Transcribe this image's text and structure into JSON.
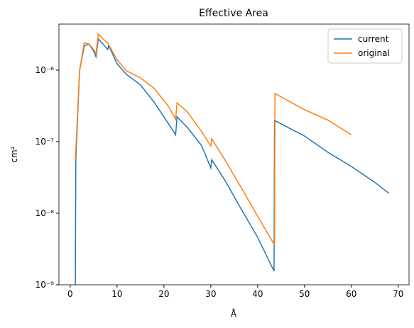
{
  "chart_data": {
    "type": "line",
    "title": "Effective Area",
    "x_label": "Å",
    "y_label": "cm²",
    "log_y": true,
    "legend": "upper right",
    "xlim": [
      -2.4,
      72.3
    ],
    "xticks": [
      0,
      10,
      20,
      30,
      40,
      50,
      60,
      70
    ],
    "ylim": [
      1e-09,
      4.4e-06
    ],
    "yticks": [
      {
        "value": 1e-09,
        "label": "10⁻⁹"
      },
      {
        "value": 1e-08,
        "label": "10⁻⁸"
      },
      {
        "value": 1e-07,
        "label": "10⁻⁷"
      },
      {
        "value": 1e-06,
        "label": "10⁻⁶"
      }
    ],
    "series": [
      {
        "name": "current",
        "color": "#1f77b4",
        "x": [
          1.1,
          1.2,
          2,
          3,
          4,
          5,
          5.5,
          6,
          7,
          8,
          8.2,
          10,
          12,
          15,
          18,
          21,
          22.5,
          22.8,
          25,
          28,
          30,
          30.2,
          33,
          36,
          40,
          43.5,
          43.6,
          50,
          55,
          60,
          65,
          68
        ],
        "values": [
          1e-09,
          5.6e-08,
          9.8e-07,
          2.17e-06,
          2.32e-06,
          1.85e-06,
          1.54e-06,
          2.73e-06,
          2.32e-06,
          1.94e-06,
          2.22e-06,
          1.23e-06,
          8.7e-07,
          6.2e-07,
          3.5e-07,
          1.77e-07,
          1.25e-07,
          2.22e-07,
          1.58e-07,
          8.9e-08,
          4.3e-08,
          5.6e-08,
          2.9e-08,
          1.3e-08,
          4.6e-09,
          1.55e-09,
          1.98e-07,
          1.2e-07,
          7.1e-08,
          4.5e-08,
          2.7e-08,
          1.9e-08
        ]
      },
      {
        "name": "original",
        "color": "#ff7f0e",
        "x": [
          1.1,
          2,
          3,
          4,
          5,
          5.5,
          6,
          7,
          8,
          10,
          12,
          15,
          18,
          21,
          22.5,
          22.8,
          25,
          28,
          30,
          30.2,
          33,
          36,
          40,
          43.6,
          43.7,
          50,
          55,
          60
        ],
        "values": [
          5.5e-08,
          9.8e-07,
          2.4e-06,
          2.32e-06,
          1.94e-06,
          1.7e-06,
          3.2e-06,
          2.73e-06,
          2.4e-06,
          1.4e-06,
          9.8e-07,
          7.8e-07,
          5.5e-07,
          3.1e-07,
          2.07e-07,
          3.5e-07,
          2.6e-07,
          1.4e-07,
          8.7e-08,
          1.1e-07,
          5.6e-08,
          2.6e-08,
          9.1e-09,
          3.6e-09,
          4.7e-07,
          2.8e-07,
          2e-07,
          1.25e-07
        ]
      }
    ]
  }
}
